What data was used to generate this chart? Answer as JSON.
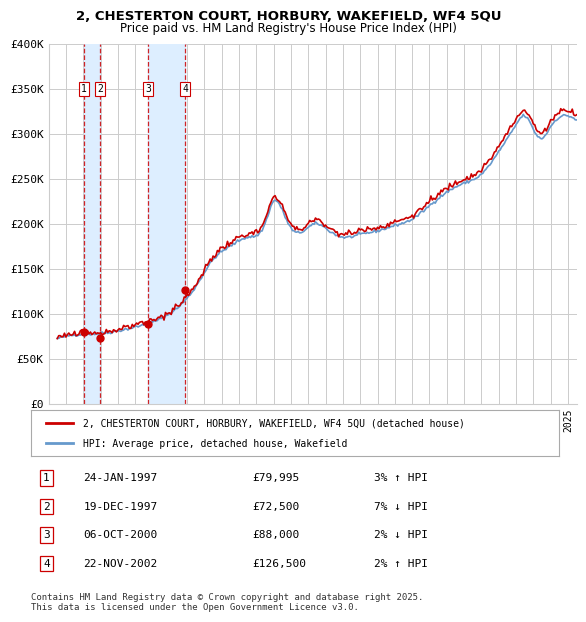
{
  "title1": "2, CHESTERTON COURT, HORBURY, WAKEFIELD, WF4 5QU",
  "title2": "Price paid vs. HM Land Registry's House Price Index (HPI)",
  "ylabel_ticks": [
    "£0",
    "£50K",
    "£100K",
    "£150K",
    "£200K",
    "£250K",
    "£300K",
    "£350K",
    "£400K"
  ],
  "ylim": [
    0,
    400000
  ],
  "xlim_start": 1995.5,
  "xlim_end": 2025.5,
  "transactions": [
    {
      "num": 1,
      "date": "24-JAN-1997",
      "price": 79995,
      "pct": "3%",
      "dir": "↑",
      "x_year": 1997.06
    },
    {
      "num": 2,
      "date": "19-DEC-1997",
      "price": 72500,
      "pct": "7%",
      "dir": "↓",
      "x_year": 1997.97
    },
    {
      "num": 3,
      "date": "06-OCT-2000",
      "price": 88000,
      "pct": "2%",
      "dir": "↓",
      "x_year": 2000.76
    },
    {
      "num": 4,
      "date": "22-NOV-2002",
      "price": 126500,
      "pct": "2%",
      "dir": "↑",
      "x_year": 2002.89
    }
  ],
  "legend_red": "2, CHESTERTON COURT, HORBURY, WAKEFIELD, WF4 5QU (detached house)",
  "legend_blue": "HPI: Average price, detached house, Wakefield",
  "footer": "Contains HM Land Registry data © Crown copyright and database right 2025.\nThis data is licensed under the Open Government Licence v3.0.",
  "red_color": "#cc0000",
  "blue_color": "#6699cc",
  "grid_color": "#cccccc",
  "shade_color": "#ddeeff",
  "dashed_color": "#cc0000"
}
